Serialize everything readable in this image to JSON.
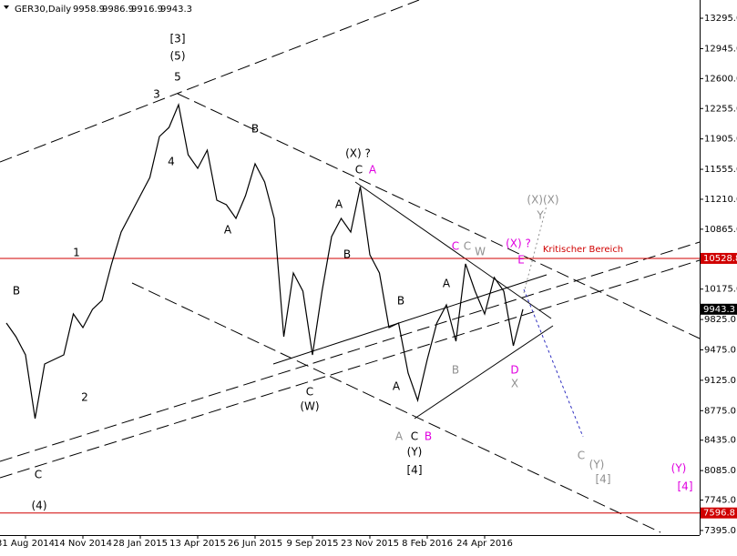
{
  "chart_data": {
    "type": "line",
    "title": "GER30,Daily",
    "ohlc": [
      9958.9,
      9986.9,
      9916.9,
      9943.3
    ],
    "categories": [
      null,
      null,
      "31 Aug 2014",
      null,
      null,
      null,
      null,
      null,
      "14 Nov 2014",
      null,
      null,
      null,
      null,
      null,
      "28 Jan 2015",
      null,
      null,
      null,
      null,
      null,
      "13 Apr 2015",
      null,
      null,
      null,
      null,
      null,
      "26 Jun 2015",
      null,
      null,
      null,
      null,
      null,
      "9 Sep 2015",
      null,
      null,
      null,
      null,
      null,
      "23 Nov 2015",
      null,
      null,
      null,
      null,
      null,
      "8 Feb 2016",
      null,
      null,
      null,
      null,
      null,
      "24 Apr 2016",
      null,
      null,
      null,
      null
    ],
    "series": [
      {
        "color": "#000000",
        "values": [
          9784,
          9627,
          9417,
          8684,
          9313,
          9365,
          9417,
          9889,
          9732,
          9941,
          10046,
          10466,
          10832,
          11042,
          11251,
          11461,
          11933,
          12037,
          12299,
          11723,
          11566,
          11776,
          11199,
          11147,
          10990,
          11251,
          11618,
          11409,
          10990,
          9627,
          10361,
          10151,
          9417,
          10151,
          10780,
          10990,
          10832,
          11356,
          10570,
          10361,
          9732,
          9784,
          9208,
          8893,
          9365,
          9784,
          9994,
          9575,
          10466,
          10151,
          9889,
          10309,
          10151,
          9522,
          9943.3
        ]
      }
    ],
    "ylim": [
      7342,
      13505
    ],
    "yticks": [
      {
        "value": 13295,
        "label": "13295.0"
      },
      {
        "value": 12945,
        "label": "12945.0"
      },
      {
        "value": 12600,
        "label": "12600.0"
      },
      {
        "value": 12255,
        "label": "12255.0"
      },
      {
        "value": 11905,
        "label": "11905.0"
      },
      {
        "value": 11555,
        "label": "11555.0"
      },
      {
        "value": 11210,
        "label": "11210.0"
      },
      {
        "value": 10865,
        "label": "10865.0"
      },
      {
        "value": 10175,
        "label": "10175.0"
      },
      {
        "value": 9825,
        "label": "9825.0"
      },
      {
        "value": 9475,
        "label": "9475.0"
      },
      {
        "value": 9125,
        "label": "9125.0"
      },
      {
        "value": 8775,
        "label": "8775.0"
      },
      {
        "value": 8435,
        "label": "8435.0"
      },
      {
        "value": 8085,
        "label": "8085.0"
      },
      {
        "value": 7745,
        "label": "7745.0"
      },
      {
        "value": 7395,
        "label": "7395.0"
      }
    ],
    "hlines": [
      {
        "value": 10528.8,
        "color": "#d00000"
      },
      {
        "value": 7596.8,
        "color": "#d00000"
      }
    ],
    "last_price": 9943.3,
    "annotations": [
      {
        "text": "B",
        "color": "#000000"
      },
      {
        "text": "1",
        "color": "#000000"
      },
      {
        "text": "2",
        "color": "#000000"
      },
      {
        "text": "C",
        "color": "#000000"
      },
      {
        "text": "(4)",
        "color": "#000000"
      },
      {
        "text": "3",
        "color": "#000000"
      },
      {
        "text": "5",
        "color": "#000000"
      },
      {
        "text": "(5)",
        "color": "#000000"
      },
      {
        "text": "[3]",
        "color": "#000000"
      },
      {
        "text": "4",
        "color": "#000000"
      },
      {
        "text": "A",
        "color": "#000000"
      },
      {
        "text": "B",
        "color": "#000000"
      },
      {
        "text": "C",
        "color": "#000000"
      },
      {
        "text": "(W)",
        "color": "#000000"
      },
      {
        "text": "(X) ?",
        "color": "#000000"
      },
      {
        "text": "C",
        "color": "#000000"
      },
      {
        "text": "A",
        "color": "#e000e0"
      },
      {
        "text": "A",
        "color": "#000000"
      },
      {
        "text": "B",
        "color": "#000000"
      },
      {
        "text": "B",
        "color": "#000000"
      },
      {
        "text": "A",
        "color": "#000000"
      },
      {
        "text": "A",
        "color": "#000000"
      },
      {
        "text": "A",
        "color": "#909090"
      },
      {
        "text": "C",
        "color": "#000000"
      },
      {
        "text": "B",
        "color": "#e000e0"
      },
      {
        "text": "(Y)",
        "color": "#000000"
      },
      {
        "text": "[4]",
        "color": "#000000"
      },
      {
        "text": "B",
        "color": "#909090"
      },
      {
        "text": "C",
        "color": "#e000e0"
      },
      {
        "text": "C",
        "color": "#909090"
      },
      {
        "text": "W",
        "color": "#909090"
      },
      {
        "text": "(X) ?",
        "color": "#e000e0"
      },
      {
        "text": "E",
        "color": "#e000e0"
      },
      {
        "text": "D",
        "color": "#e000e0"
      },
      {
        "text": "X",
        "color": "#909090"
      },
      {
        "text": "(X)(X)",
        "color": "#909090"
      },
      {
        "text": "Y",
        "color": "#909090"
      },
      {
        "text": "C",
        "color": "#909090"
      },
      {
        "text": "(Y)",
        "color": "#909090"
      },
      {
        "text": "[4]",
        "color": "#909090"
      },
      {
        "text": "(Y)",
        "color": "#e000e0"
      },
      {
        "text": "[4]",
        "color": "#e000e0"
      },
      {
        "text": "Kritischer Bereich",
        "color": "#d00000"
      }
    ]
  }
}
